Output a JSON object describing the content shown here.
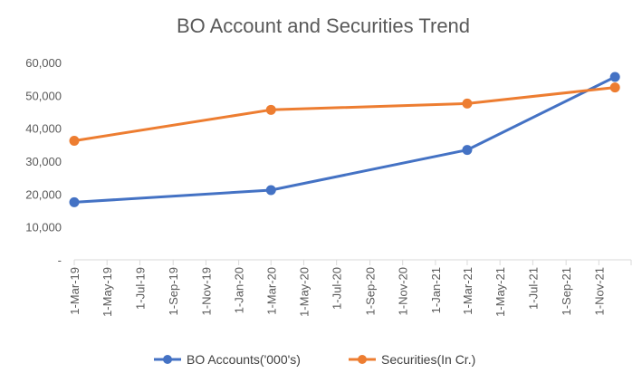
{
  "chart_data": {
    "type": "line",
    "title": "BO Account and Securities Trend",
    "xlabel": "",
    "ylabel": "",
    "x_axis": {
      "kind": "date",
      "min": "2019-03-01",
      "max": "2021-12-31",
      "tick_labels": [
        "1-Mar-19",
        "1-May-19",
        "1-Jul-19",
        "1-Sep-19",
        "1-Nov-19",
        "1-Jan-20",
        "1-Mar-20",
        "1-May-20",
        "1-Jul-20",
        "1-Sep-20",
        "1-Nov-20",
        "1-Jan-21",
        "1-Mar-21",
        "1-May-21",
        "1-Jul-21",
        "1-Sep-21",
        "1-Nov-21"
      ],
      "tick_dates": [
        "2019-03-01",
        "2019-05-01",
        "2019-07-01",
        "2019-09-01",
        "2019-11-01",
        "2020-01-01",
        "2020-03-01",
        "2020-05-01",
        "2020-07-01",
        "2020-09-01",
        "2020-11-01",
        "2021-01-01",
        "2021-03-01",
        "2021-05-01",
        "2021-07-01",
        "2021-09-01",
        "2021-11-01"
      ]
    },
    "y_axis": {
      "min": 0,
      "max": 60000,
      "ticks": [
        0,
        10000,
        20000,
        30000,
        40000,
        50000,
        60000
      ],
      "tick_labels": [
        "-",
        "10,000",
        "20,000",
        "30,000",
        "40,000",
        "50,000",
        "60,000"
      ]
    },
    "grid": false,
    "legend_position": "bottom",
    "series": [
      {
        "name": "BO Accounts('000's)",
        "color": "#4472c4",
        "x": [
          "2019-03-01",
          "2020-03-01",
          "2021-03-01",
          "2021-12-01"
        ],
        "values": [
          17500,
          21200,
          33400,
          55600
        ]
      },
      {
        "name": "Securities(In Cr.)",
        "color": "#ed7d31",
        "x": [
          "2019-03-01",
          "2020-03-01",
          "2021-03-01",
          "2021-12-01"
        ],
        "values": [
          36200,
          45600,
          47500,
          52400
        ]
      }
    ],
    "axis_color": "#d9d9d9"
  }
}
